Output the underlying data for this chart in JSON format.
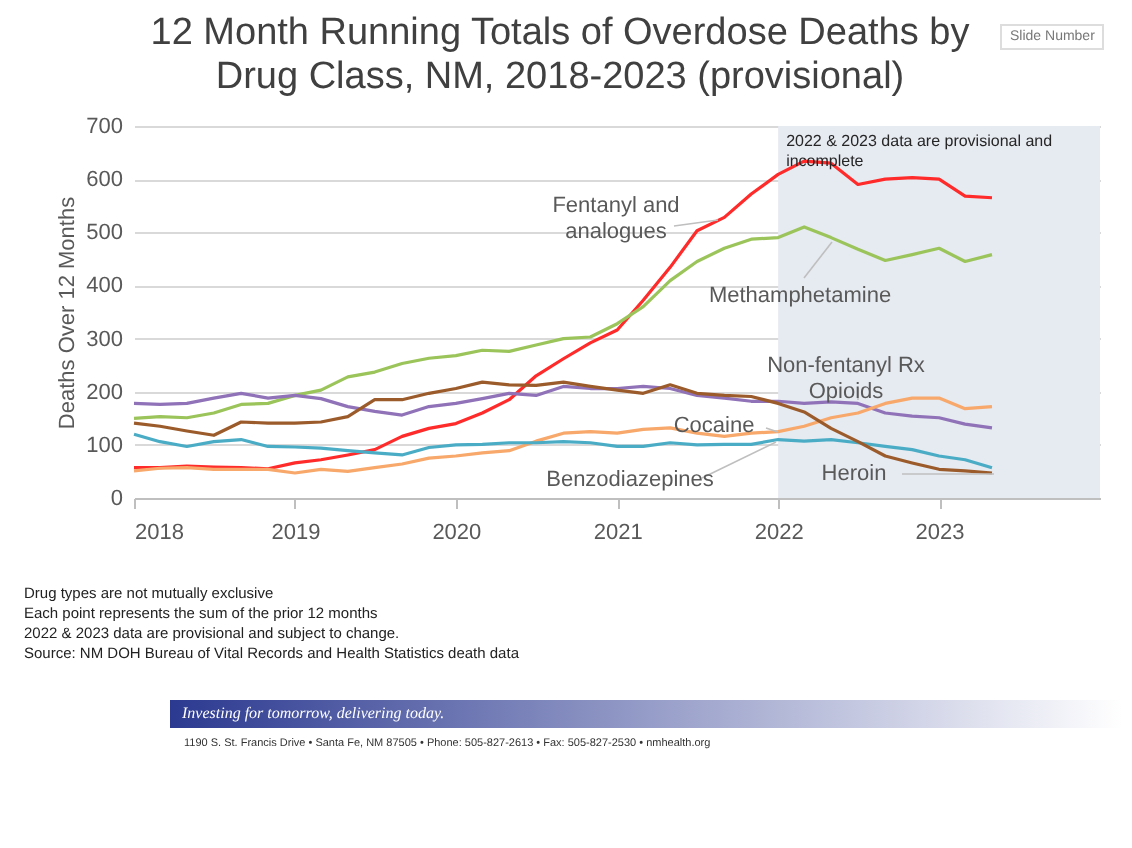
{
  "chart_data": {
    "type": "line",
    "title": "12 Month Running Totals of Overdose Deaths by Drug Class, NM, 2018-2023 (provisional)",
    "ylabel": "Deaths Over 12 Months",
    "x": [
      "2018-01",
      "2018-03",
      "2018-05",
      "2018-07",
      "2018-09",
      "2018-11",
      "2019-01",
      "2019-03",
      "2019-05",
      "2019-07",
      "2019-09",
      "2019-11",
      "2020-01",
      "2020-03",
      "2020-05",
      "2020-07",
      "2020-09",
      "2020-11",
      "2021-01",
      "2021-03",
      "2021-05",
      "2021-07",
      "2021-09",
      "2021-11",
      "2022-01",
      "2022-03",
      "2022-05",
      "2022-07",
      "2022-09",
      "2022-11",
      "2023-01",
      "2023-03",
      "2023-05"
    ],
    "series": [
      {
        "name": "Fentanyl and analogues",
        "color": "#ff2a2a",
        "values": [
          57,
          57,
          60,
          58,
          57,
          55,
          66,
          72,
          81,
          91,
          116,
          131,
          140,
          160,
          185,
          230,
          262,
          292,
          316,
          372,
          434,
          503,
          528,
          572,
          609,
          634,
          630,
          590,
          600,
          603,
          600,
          568,
          565
        ]
      },
      {
        "name": "Methamphetamine",
        "color": "#9bc45a",
        "values": [
          150,
          153,
          151,
          160,
          176,
          178,
          193,
          203,
          228,
          237,
          253,
          263,
          268,
          278,
          276,
          288,
          300,
          303,
          328,
          360,
          409,
          445,
          470,
          487,
          490,
          510,
          490,
          468,
          447,
          458,
          470,
          445,
          458
        ]
      },
      {
        "name": "Non-fentanyl Rx Opioids",
        "color": "#8f72b8",
        "values": [
          178,
          176,
          178,
          188,
          197,
          188,
          193,
          187,
          172,
          163,
          156,
          172,
          178,
          187,
          197,
          193,
          210,
          206,
          206,
          210,
          206,
          193,
          188,
          182,
          182,
          178,
          181,
          178,
          160,
          154,
          151,
          139,
          132
        ]
      },
      {
        "name": "Cocaine",
        "color": "#f7a86a",
        "values": [
          51,
          56,
          57,
          54,
          54,
          54,
          47,
          54,
          50,
          57,
          64,
          75,
          79,
          85,
          89,
          107,
          122,
          125,
          122,
          129,
          132,
          122,
          116,
          122,
          125,
          135,
          151,
          160,
          178,
          188,
          188,
          168,
          172
        ]
      },
      {
        "name": "Benzodiazepines",
        "color": "#4bacc6",
        "values": [
          120,
          106,
          97,
          106,
          110,
          97,
          96,
          94,
          89,
          85,
          81,
          95,
          100,
          101,
          104,
          104,
          106,
          104,
          97,
          97,
          104,
          100,
          101,
          101,
          110,
          107,
          110,
          104,
          97,
          91,
          79,
          72,
          57
        ]
      },
      {
        "name": "Heroin",
        "color": "#9c5b2a",
        "values": [
          141,
          135,
          126,
          118,
          143,
          141,
          141,
          143,
          153,
          185,
          185,
          197,
          206,
          218,
          213,
          212,
          218,
          210,
          203,
          197,
          213,
          197,
          193,
          191,
          178,
          162,
          131,
          106,
          79,
          66,
          54,
          51,
          47
        ]
      }
    ],
    "xlim": [
      "2018",
      "2024"
    ],
    "xticks": [
      "2018",
      "2019",
      "2020",
      "2021",
      "2022",
      "2023"
    ],
    "ylim": [
      0,
      700
    ],
    "yticks": [
      0,
      100,
      200,
      300,
      400,
      500,
      600,
      700
    ],
    "grid": "y",
    "legend": false,
    "bands": [
      {
        "axis": "x",
        "from": "2022",
        "to": "2024",
        "label": "2022 & 2023 data are provisional and incomplete",
        "color": "#e6eaf1"
      }
    ],
    "annotations": [
      "Drug types are not mutually exclusive",
      "Each point represents the sum of the prior 12 months",
      "2022 & 2023 data are provisional and subject to change.",
      "Source:  NM DOH Bureau of Vital Records and Health Statistics death data",
      "Investing for tomorrow, delivering today.",
      "1190 S. St. Francis Drive • Santa Fe, NM 87505 • Phone: 505-827-2613 • Fax: 505-827-2530 • nmhealth.org",
      "Slide Number"
    ]
  }
}
